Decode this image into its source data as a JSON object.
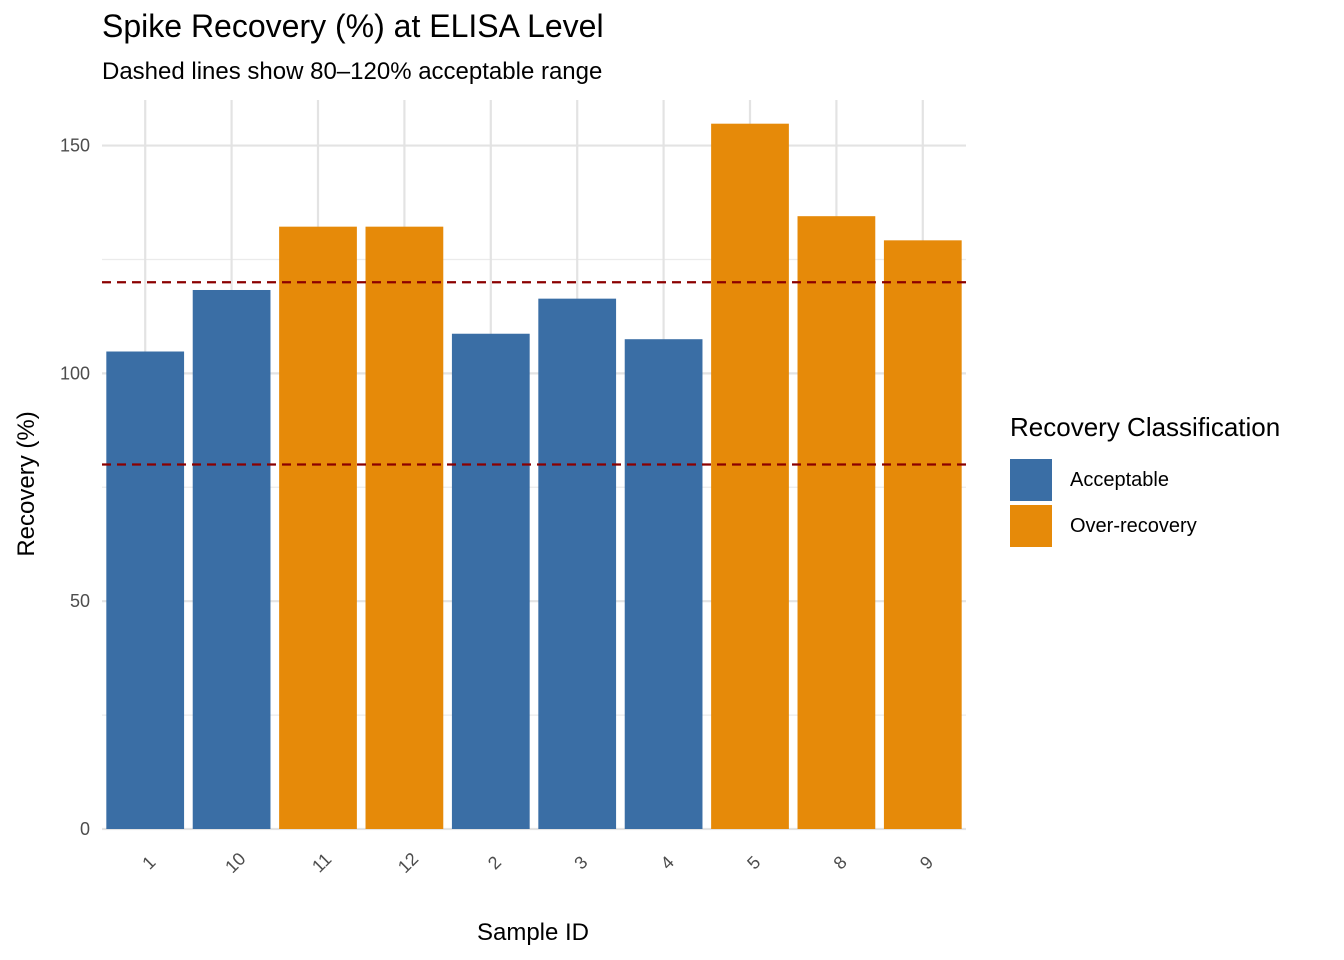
{
  "chart_data": {
    "type": "bar",
    "title": "Spike Recovery (%) at ELISA Level",
    "subtitle": "Dashed lines show 80–120% acceptable range",
    "xlabel": "Sample ID",
    "ylabel": "Recovery (%)",
    "ylim": [
      0,
      160
    ],
    "yticks": [
      0,
      50,
      100,
      150
    ],
    "categories": [
      "1",
      "10",
      "11",
      "12",
      "2",
      "3",
      "4",
      "5",
      "8",
      "9"
    ],
    "values": [
      104.8,
      118.3,
      132.2,
      132.2,
      108.7,
      116.4,
      107.5,
      154.8,
      134.5,
      129.2
    ],
    "classes": [
      "Acceptable",
      "Acceptable",
      "Over-recovery",
      "Over-recovery",
      "Acceptable",
      "Acceptable",
      "Acceptable",
      "Over-recovery",
      "Over-recovery",
      "Over-recovery"
    ],
    "reference_lines": [
      80,
      120
    ],
    "reference_line_color": "#8b0000",
    "grid": true,
    "legend": {
      "title": "Recovery Classification",
      "placement": "right",
      "entries": [
        {
          "label": "Acceptable",
          "color": "#3a6ea5"
        },
        {
          "label": "Over-recovery",
          "color": "#e68a09"
        }
      ]
    }
  }
}
